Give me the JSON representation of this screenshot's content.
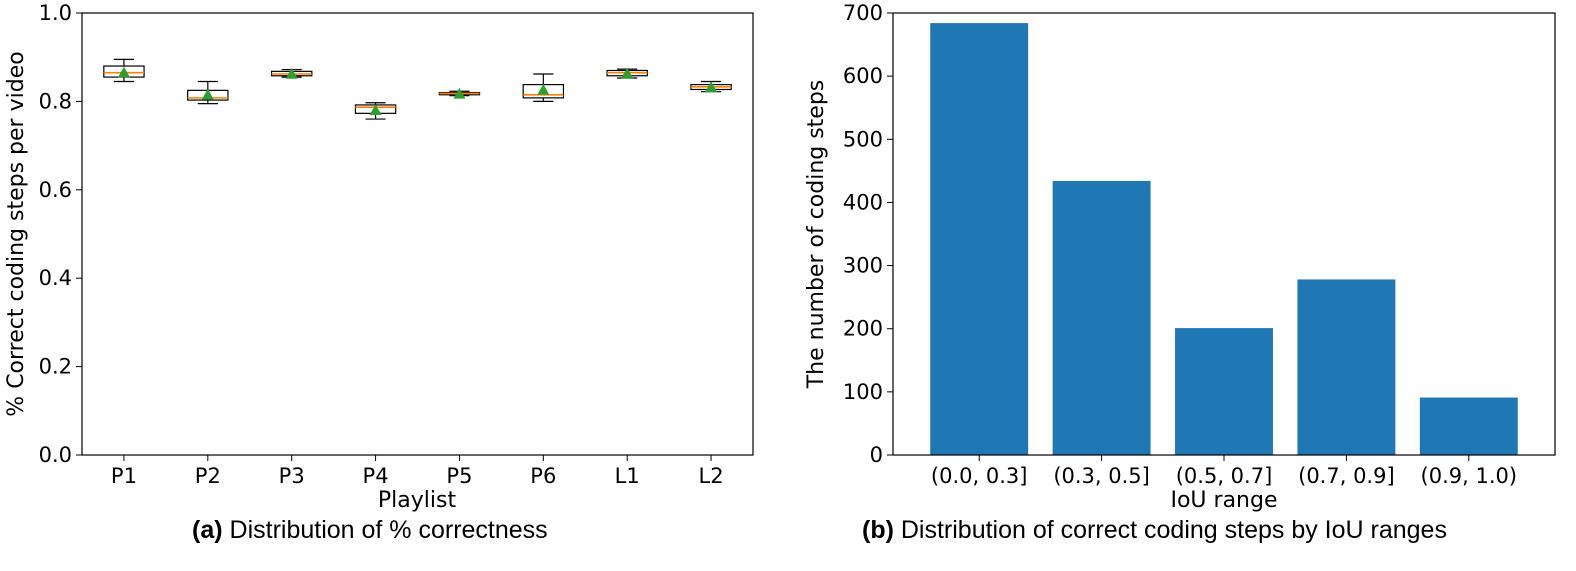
{
  "chart_data": [
    {
      "type": "box",
      "title": "",
      "xlabel": "Playlist",
      "ylabel": "% Correct coding steps per video",
      "ylim": [
        0.0,
        1.0
      ],
      "yticks": [
        "0.0",
        "0.2",
        "0.4",
        "0.6",
        "0.8",
        "1.0"
      ],
      "categories": [
        "P1",
        "P2",
        "P3",
        "P4",
        "P5",
        "P6",
        "L1",
        "L2"
      ],
      "boxes": [
        {
          "whisker_low": 0.845,
          "q1": 0.855,
          "median": 0.865,
          "q3": 0.88,
          "whisker_high": 0.895,
          "mean": 0.865
        },
        {
          "whisker_low": 0.795,
          "q1": 0.803,
          "median": 0.808,
          "q3": 0.825,
          "whisker_high": 0.845,
          "mean": 0.815
        },
        {
          "whisker_low": 0.855,
          "q1": 0.858,
          "median": 0.862,
          "q3": 0.868,
          "whisker_high": 0.872,
          "mean": 0.862
        },
        {
          "whisker_low": 0.76,
          "q1": 0.773,
          "median": 0.787,
          "q3": 0.792,
          "whisker_high": 0.797,
          "mean": 0.78
        },
        {
          "whisker_low": 0.813,
          "q1": 0.815,
          "median": 0.818,
          "q3": 0.82,
          "whisker_high": 0.823,
          "mean": 0.817
        },
        {
          "whisker_low": 0.8,
          "q1": 0.808,
          "median": 0.815,
          "q3": 0.838,
          "whisker_high": 0.862,
          "mean": 0.826
        },
        {
          "whisker_low": 0.853,
          "q1": 0.858,
          "median": 0.865,
          "q3": 0.87,
          "whisker_high": 0.873,
          "mean": 0.863
        },
        {
          "whisker_low": 0.822,
          "q1": 0.827,
          "median": 0.833,
          "q3": 0.838,
          "whisker_high": 0.845,
          "mean": 0.832
        }
      ],
      "caption_label": "(a)",
      "caption_text": " Distribution of % correctness"
    },
    {
      "type": "bar",
      "title": "",
      "xlabel": "IoU range",
      "ylabel": "The number of coding steps",
      "ylim": [
        0,
        700
      ],
      "yticks": [
        "0",
        "100",
        "200",
        "300",
        "400",
        "500",
        "600",
        "700"
      ],
      "categories": [
        "(0.0, 0.3]",
        "(0.3, 0.5]",
        "(0.5, 0.7]",
        "(0.7, 0.9]",
        "(0.9, 1.0)"
      ],
      "values": [
        684,
        434,
        201,
        278,
        91
      ],
      "caption_label": "(b)",
      "caption_text": " Distribution of correct coding steps by IoU ranges"
    }
  ],
  "colors": {
    "bar": "#1f77b4",
    "median": "#ff7f0e",
    "mean_marker": "#2ca02c",
    "box_edge": "#000000"
  }
}
